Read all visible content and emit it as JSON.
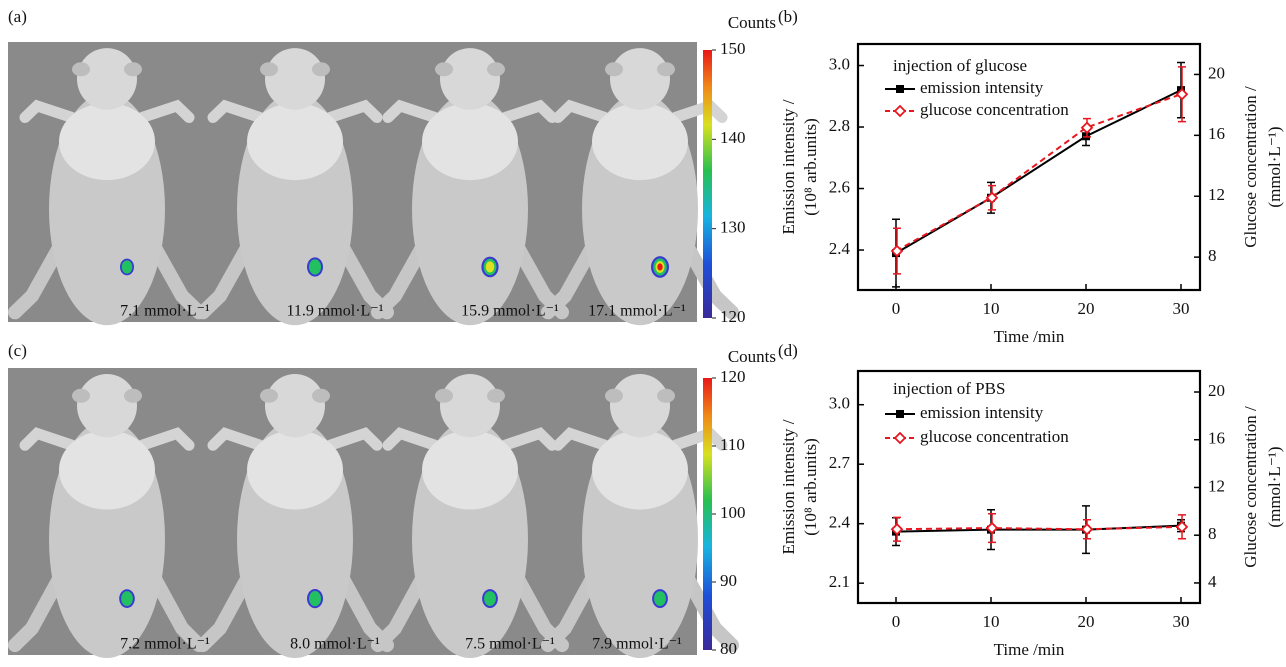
{
  "images": [
    {
      "label": "(a)",
      "colorbar_title": "Counts",
      "colorbar_ticks": [
        120,
        130,
        140,
        150
      ],
      "captions": [
        "7.1 mmol·L⁻¹",
        "11.9 mmol·L⁻¹",
        "15.9 mmol·L⁻¹",
        "17.1 mmol·L⁻¹"
      ]
    },
    {
      "label": "(c)",
      "colorbar_title": "Counts",
      "colorbar_ticks": [
        80,
        90,
        100,
        110,
        120
      ],
      "captions": [
        "7.2 mmol·L⁻¹",
        "8.0 mmol·L⁻¹",
        "7.5 mmol·L⁻¹",
        "7.9 mmol·L⁻¹"
      ]
    }
  ],
  "chart_data": [
    {
      "type": "line",
      "label": "(b)",
      "legend_title": "injection of glucose",
      "xlabel": "Time /min",
      "ylabel": [
        "Emission intensity /",
        "(10⁸ arb.units)"
      ],
      "y2label": [
        "Glucose concentration /",
        "(mmol·L⁻¹)"
      ],
      "x": [
        0,
        10,
        20,
        30
      ],
      "xlim": [
        -4,
        32
      ],
      "xticks": [
        0,
        10,
        20,
        30
      ],
      "ylim": [
        2.27,
        3.07
      ],
      "yticks": [
        2.4,
        2.6,
        2.8,
        {
          "value": 3,
          "label": "3.0"
        }
      ],
      "y2lim": [
        5.84,
        22
      ],
      "y2ticks": [
        8,
        12,
        16,
        20
      ],
      "series": [
        {
          "name": "emission intensity",
          "color": "#000000",
          "values": [
            2.39,
            2.57,
            2.77,
            2.92
          ],
          "errors": [
            0.11,
            0.05,
            0.03,
            0.09
          ]
        },
        {
          "name": "glucose concentration",
          "color": "#e8161e",
          "axis": "y2",
          "values": [
            8.4,
            11.9,
            16.5,
            18.7
          ],
          "errors": [
            1.5,
            0.8,
            0.6,
            1.8
          ]
        }
      ]
    },
    {
      "type": "line",
      "label": "(d)",
      "legend_title": "injection of PBS",
      "xlabel": "Time /min",
      "ylabel": [
        "Emission intensity /",
        "(10⁸ arb.units)"
      ],
      "y2label": [
        "Glucose concentration /",
        "(mmol·L⁻¹)"
      ],
      "x": [
        0,
        10,
        20,
        30
      ],
      "xlim": [
        -4,
        32
      ],
      "xticks": [
        0,
        10,
        20,
        30
      ],
      "ylim": [
        2.0,
        3.17
      ],
      "yticks": [
        2.1,
        2.4,
        2.7,
        {
          "value": 3,
          "label": "3.0"
        }
      ],
      "y2lim": [
        2.32,
        21.76
      ],
      "y2ticks": [
        4,
        8,
        12,
        16,
        20
      ],
      "series": [
        {
          "name": "emission intensity",
          "color": "#000000",
          "values": [
            2.36,
            2.37,
            2.37,
            2.39
          ],
          "errors": [
            0.07,
            0.1,
            0.12,
            0.03
          ]
        },
        {
          "name": "glucose concentration",
          "color": "#e8161e",
          "axis": "y2",
          "values": [
            8.5,
            8.6,
            8.5,
            8.7
          ],
          "errors": [
            1.0,
            1.2,
            0.8,
            1.0
          ]
        }
      ]
    }
  ]
}
